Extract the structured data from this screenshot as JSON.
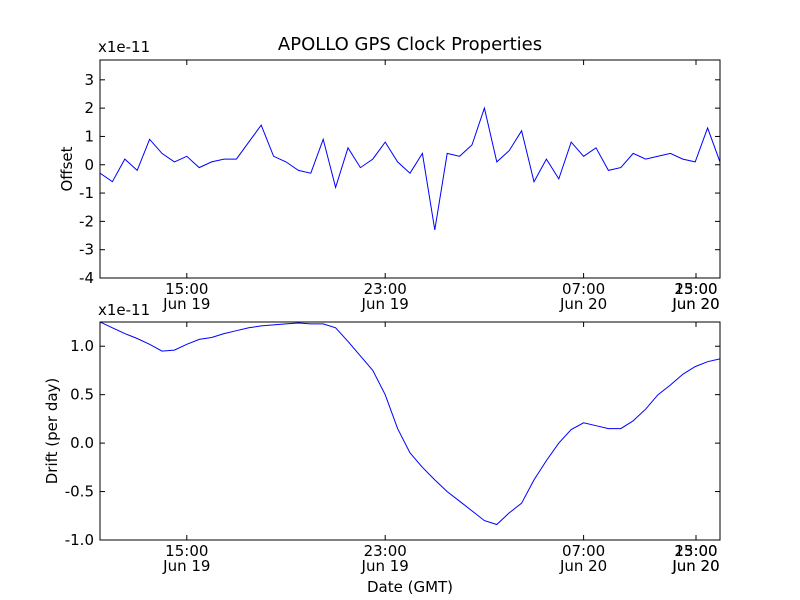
{
  "title": "APOLLO GPS Clock Properties",
  "colors": {
    "line": "#0000ff",
    "axes": "#000000"
  },
  "chart_data": [
    {
      "type": "line",
      "name": "offset-plot",
      "title": "APOLLO GPS Clock Properties",
      "ylabel": "Offset",
      "xlabel": "",
      "y_scale_label": "x1e-11",
      "ylim": [
        -4,
        3.7
      ],
      "y_ticks": [
        -4,
        -3,
        -2,
        -1,
        0,
        1,
        2,
        3
      ],
      "y_tick_labels": [
        "-4",
        "-3",
        "-2",
        "-1",
        "0",
        "1",
        "2",
        "3"
      ],
      "xlim_hours": [
        11.5,
        36.5
      ],
      "x_ticks": [
        {
          "hour": 15,
          "time": "15:00",
          "date": "Jun 19"
        },
        {
          "hour": 23,
          "time": "23:00",
          "date": "Jun 19"
        },
        {
          "hour": 31,
          "time": "07:00",
          "date": "Jun 20"
        },
        {
          "hour": 39,
          "time": "15:00",
          "date": "Jun 20"
        },
        {
          "hour": 47,
          "time": "23:00",
          "date": "Jun 20"
        }
      ],
      "x_hours": [
        11.5,
        12.0,
        12.5,
        13.0,
        13.5,
        14.0,
        14.5,
        15.0,
        15.5,
        16.0,
        16.5,
        17.0,
        17.5,
        18.0,
        18.5,
        19.0,
        19.5,
        20.0,
        20.5,
        21.0,
        21.5,
        22.0,
        22.5,
        23.0,
        23.5,
        24.0,
        24.5,
        25.0,
        25.5,
        26.0,
        26.5,
        27.0,
        27.5,
        28.0,
        28.5,
        29.0,
        29.5,
        30.0,
        30.5,
        31.0,
        31.5,
        32.0,
        32.5,
        33.0,
        33.5,
        34.0,
        34.5,
        35.0,
        35.5,
        36.0,
        36.5
      ],
      "values": [
        -0.3,
        -0.6,
        0.2,
        -0.2,
        0.9,
        0.4,
        0.1,
        0.3,
        -0.1,
        0.1,
        0.2,
        0.2,
        0.8,
        1.4,
        0.3,
        0.1,
        -0.2,
        -0.3,
        0.9,
        -0.8,
        0.6,
        -0.1,
        0.2,
        0.8,
        0.1,
        -0.3,
        0.4,
        -2.3,
        0.4,
        0.3,
        0.7,
        2.0,
        0.1,
        0.5,
        1.2,
        -0.6,
        0.2,
        -0.5,
        0.8,
        0.3,
        0.6,
        -0.2,
        -0.1,
        0.4,
        0.2,
        0.3,
        0.4,
        0.2,
        0.1,
        1.3,
        0.1
      ]
    },
    {
      "type": "line",
      "name": "drift-plot",
      "ylabel": "Drift (per day)",
      "xlabel": "Date (GMT)",
      "y_scale_label": "x1e-11",
      "ylim": [
        -1.0,
        1.25
      ],
      "y_ticks": [
        -1.0,
        -0.5,
        0.0,
        0.5,
        1.0
      ],
      "y_tick_labels": [
        "-1.0",
        "-0.5",
        "0.0",
        "0.5",
        "1.0"
      ],
      "xlim_hours": [
        11.5,
        36.5
      ],
      "x_ticks": [
        {
          "hour": 15,
          "time": "15:00",
          "date": "Jun 19"
        },
        {
          "hour": 23,
          "time": "23:00",
          "date": "Jun 19"
        },
        {
          "hour": 31,
          "time": "07:00",
          "date": "Jun 20"
        },
        {
          "hour": 39,
          "time": "15:00",
          "date": "Jun 20"
        },
        {
          "hour": 47,
          "time": "23:00",
          "date": "Jun 20"
        }
      ],
      "x_hours": [
        11.5,
        12.0,
        12.5,
        13.0,
        13.5,
        14.0,
        14.5,
        15.0,
        15.5,
        16.0,
        16.5,
        17.0,
        17.5,
        18.0,
        18.5,
        19.0,
        19.5,
        20.0,
        20.5,
        21.0,
        21.5,
        22.0,
        22.5,
        23.0,
        23.5,
        24.0,
        24.5,
        25.0,
        25.5,
        26.0,
        26.5,
        27.0,
        27.5,
        28.0,
        28.5,
        29.0,
        29.5,
        30.0,
        30.5,
        31.0,
        31.5,
        32.0,
        32.5,
        33.0,
        33.5,
        34.0,
        34.5,
        35.0,
        35.5,
        36.0,
        36.5
      ],
      "values": [
        1.25,
        1.19,
        1.13,
        1.08,
        1.02,
        0.95,
        0.96,
        1.02,
        1.07,
        1.09,
        1.13,
        1.16,
        1.19,
        1.21,
        1.22,
        1.23,
        1.24,
        1.23,
        1.23,
        1.19,
        1.05,
        0.9,
        0.75,
        0.5,
        0.15,
        -0.1,
        -0.25,
        -0.38,
        -0.5,
        -0.6,
        -0.7,
        -0.8,
        -0.84,
        -0.72,
        -0.62,
        -0.38,
        -0.18,
        0.0,
        0.14,
        0.21,
        0.18,
        0.15,
        0.15,
        0.23,
        0.35,
        0.5,
        0.6,
        0.71,
        0.79,
        0.84,
        0.87
      ]
    }
  ]
}
